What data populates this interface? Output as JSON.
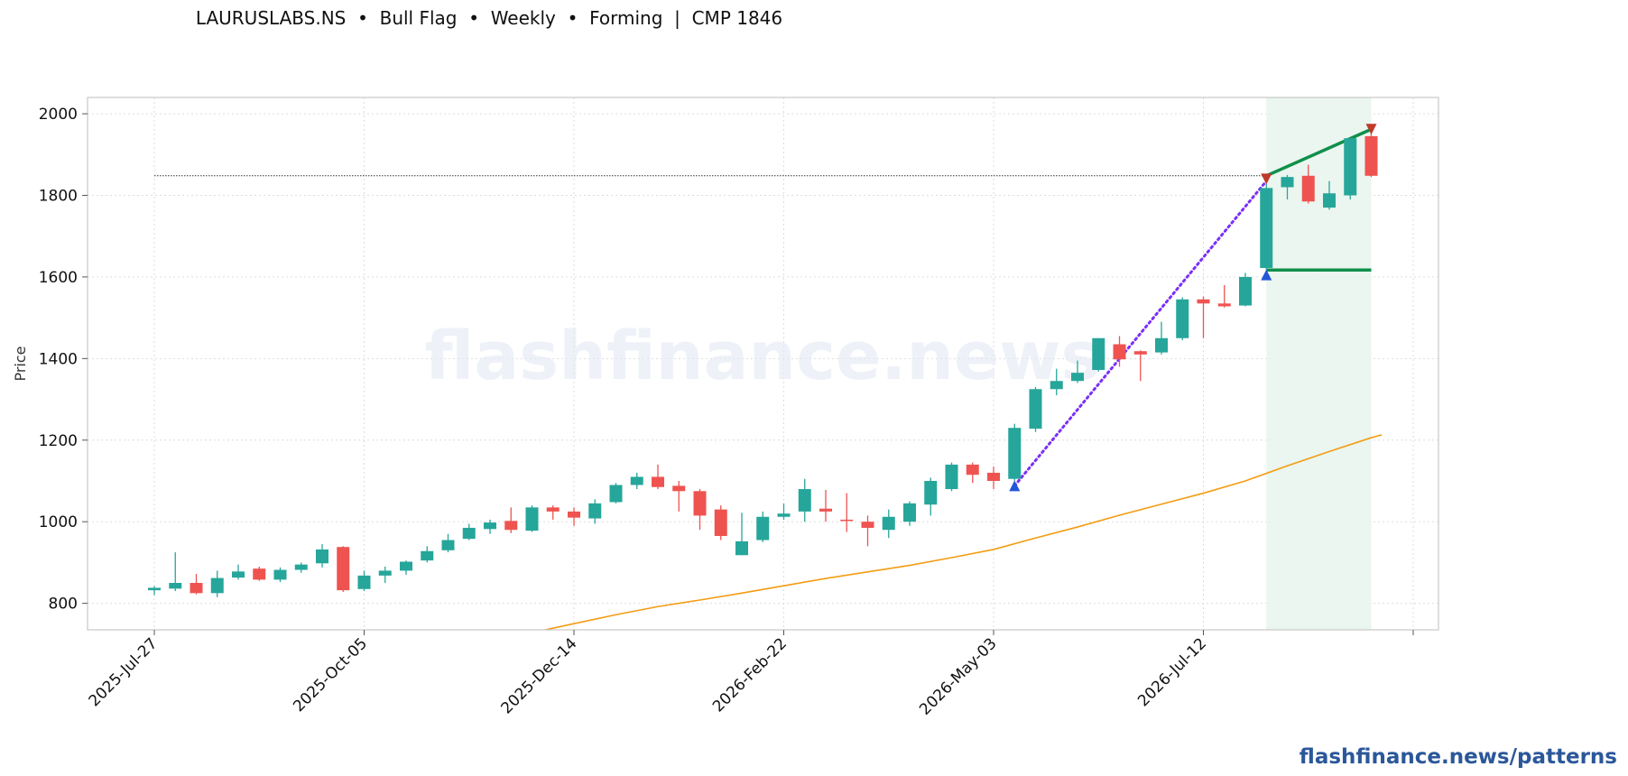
{
  "title": "LAURUSLABS.NS  •  Bull Flag  •  Weekly  •  Forming  |  CMP 1846",
  "footer": "flashfinance.news/patterns",
  "watermark": "flashfinance.news",
  "colors": {
    "up": "#26a69a",
    "down": "#ef5350",
    "ma": "#f39c12",
    "flag_lines": "#0f8f4a",
    "pole_line": "#7b2ff7",
    "marker_up": "#2457d6",
    "marker_down": "#c0392b",
    "flag_zone": "#e6f4ec",
    "footer": "#2b579a"
  },
  "chart_data": {
    "type": "candlestick",
    "ylabel": "Price",
    "ylim": [
      735,
      2040
    ],
    "yticks": [
      800,
      1000,
      1200,
      1400,
      1600,
      1800,
      2000
    ],
    "xticks": [
      {
        "index": 0,
        "label": "2025-Jul-27"
      },
      {
        "index": 10,
        "label": "2025-Oct-05"
      },
      {
        "index": 20,
        "label": "2025-Dec-14"
      },
      {
        "index": 30,
        "label": "2026-Feb-22"
      },
      {
        "index": 40,
        "label": "2026-May-03"
      },
      {
        "index": 50,
        "label": "2026-Jul-12"
      },
      {
        "index": 60,
        "label": ""
      }
    ],
    "grid": true,
    "candles": [
      [
        832,
        842,
        820,
        838
      ],
      [
        836,
        925,
        830,
        850
      ],
      [
        850,
        872,
        822,
        825
      ],
      [
        825,
        880,
        815,
        862
      ],
      [
        863,
        895,
        858,
        878
      ],
      [
        885,
        890,
        855,
        858
      ],
      [
        858,
        888,
        852,
        882
      ],
      [
        882,
        900,
        875,
        895
      ],
      [
        898,
        945,
        888,
        932
      ],
      [
        938,
        940,
        828,
        832
      ],
      [
        835,
        880,
        830,
        868
      ],
      [
        868,
        890,
        850,
        880
      ],
      [
        880,
        905,
        870,
        902
      ],
      [
        905,
        940,
        900,
        928
      ],
      [
        930,
        970,
        925,
        955
      ],
      [
        958,
        995,
        955,
        985
      ],
      [
        982,
        1005,
        970,
        998
      ],
      [
        1002,
        1035,
        972,
        980
      ],
      [
        978,
        1040,
        975,
        1035
      ],
      [
        1035,
        1040,
        1005,
        1025
      ],
      [
        1025,
        1035,
        990,
        1010
      ],
      [
        1008,
        1055,
        995,
        1045
      ],
      [
        1048,
        1095,
        1045,
        1090
      ],
      [
        1090,
        1120,
        1080,
        1110
      ],
      [
        1110,
        1140,
        1080,
        1085
      ],
      [
        1088,
        1100,
        1025,
        1075
      ],
      [
        1075,
        1080,
        980,
        1015
      ],
      [
        1030,
        1040,
        955,
        965
      ],
      [
        918,
        1022,
        918,
        952
      ],
      [
        955,
        1025,
        950,
        1012
      ],
      [
        1012,
        1045,
        1005,
        1020
      ],
      [
        1025,
        1105,
        1000,
        1080
      ],
      [
        1032,
        1078,
        1000,
        1025
      ],
      [
        1005,
        1070,
        975,
        1002
      ],
      [
        1000,
        1015,
        940,
        985
      ],
      [
        980,
        1030,
        960,
        1012
      ],
      [
        1000,
        1050,
        990,
        1045
      ],
      [
        1042,
        1108,
        1015,
        1100
      ],
      [
        1080,
        1145,
        1075,
        1140
      ],
      [
        1140,
        1145,
        1095,
        1115
      ],
      [
        1120,
        1135,
        1080,
        1100
      ],
      [
        1105,
        1240,
        1100,
        1230
      ],
      [
        1228,
        1330,
        1220,
        1325
      ],
      [
        1325,
        1375,
        1310,
        1345
      ],
      [
        1345,
        1395,
        1340,
        1365
      ],
      [
        1372,
        1450,
        1368,
        1450
      ],
      [
        1435,
        1455,
        1380,
        1398
      ],
      [
        1418,
        1420,
        1345,
        1410
      ],
      [
        1415,
        1490,
        1410,
        1450
      ],
      [
        1450,
        1550,
        1445,
        1545
      ],
      [
        1545,
        1552,
        1450,
        1535
      ],
      [
        1535,
        1580,
        1525,
        1528
      ],
      [
        1530,
        1610,
        1528,
        1600
      ],
      [
        1622,
        1828,
        1618,
        1818
      ],
      [
        1820,
        1850,
        1790,
        1845
      ],
      [
        1848,
        1875,
        1780,
        1785
      ],
      [
        1770,
        1835,
        1765,
        1805
      ],
      [
        1800,
        1940,
        1790,
        1940
      ],
      [
        1945,
        1950,
        1845,
        1848
      ]
    ],
    "moving_average": [
      [
        18,
        728
      ],
      [
        20,
        750
      ],
      [
        22,
        772
      ],
      [
        24,
        792
      ],
      [
        26,
        808
      ],
      [
        28,
        825
      ],
      [
        30,
        843
      ],
      [
        32,
        861
      ],
      [
        34,
        877
      ],
      [
        36,
        893
      ],
      [
        38,
        912
      ],
      [
        40,
        932
      ],
      [
        42,
        960
      ],
      [
        44,
        987
      ],
      [
        46,
        1016
      ],
      [
        48,
        1043
      ],
      [
        50,
        1070
      ],
      [
        52,
        1100
      ],
      [
        54,
        1137
      ],
      [
        56,
        1172
      ],
      [
        58,
        1206
      ],
      [
        58.5,
        1213
      ]
    ],
    "pole": {
      "from": [
        41,
        1088
      ],
      "to": [
        53,
        1835
      ]
    },
    "flag_upper": {
      "from": [
        53,
        1848
      ],
      "to": [
        58,
        1962
      ]
    },
    "flag_lower": {
      "from": [
        53,
        1617
      ],
      "to": [
        58,
        1617
      ]
    },
    "resistance": {
      "from": [
        0,
        1848
      ],
      "to": [
        53,
        1848
      ]
    },
    "flag_zone": [
      53,
      58
    ],
    "markers": [
      {
        "index": 41,
        "price": 1088,
        "dir": "up"
      },
      {
        "index": 53,
        "price": 1605,
        "dir": "up"
      },
      {
        "index": 53,
        "price": 1840,
        "dir": "down"
      },
      {
        "index": 58,
        "price": 1962,
        "dir": "down"
      }
    ]
  }
}
